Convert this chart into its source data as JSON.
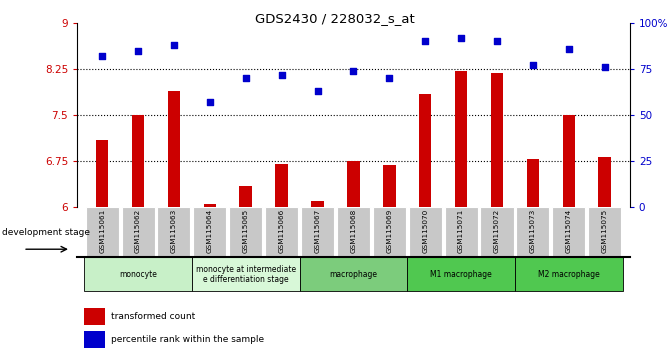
{
  "title": "GDS2430 / 228032_s_at",
  "samples": [
    "GSM115061",
    "GSM115062",
    "GSM115063",
    "GSM115064",
    "GSM115065",
    "GSM115066",
    "GSM115067",
    "GSM115068",
    "GSM115069",
    "GSM115070",
    "GSM115071",
    "GSM115072",
    "GSM115073",
    "GSM115074",
    "GSM115075"
  ],
  "red_values": [
    7.1,
    7.5,
    7.9,
    6.05,
    6.35,
    6.7,
    6.1,
    6.75,
    6.68,
    7.85,
    8.22,
    8.18,
    6.78,
    7.5,
    6.82
  ],
  "blue_values": [
    82,
    85,
    88,
    57,
    70,
    72,
    63,
    74,
    70,
    90,
    92,
    90,
    77,
    86,
    76
  ],
  "left_ylim": [
    6,
    9
  ],
  "right_ylim": [
    0,
    100
  ],
  "left_yticks": [
    6,
    6.75,
    7.5,
    8.25,
    9
  ],
  "right_yticks": [
    0,
    25,
    50,
    75,
    100
  ],
  "right_yticklabels": [
    "0",
    "25",
    "50",
    "75",
    "100%"
  ],
  "hlines": [
    6.75,
    7.5,
    8.25
  ],
  "groups": [
    {
      "label": "monocyte",
      "start": 0,
      "end": 3,
      "color": "#c8f0c8"
    },
    {
      "label": "monocyte at intermediate\ne differentiation stage",
      "start": 3,
      "end": 6,
      "color": "#d8f8d8"
    },
    {
      "label": "macrophage",
      "start": 6,
      "end": 9,
      "color": "#7ccc7c"
    },
    {
      "label": "M1 macrophage",
      "start": 9,
      "end": 12,
      "color": "#50c850"
    },
    {
      "label": "M2 macrophage",
      "start": 12,
      "end": 15,
      "color": "#50c850"
    }
  ],
  "bar_color": "#cc0000",
  "dot_color": "#0000cc",
  "tick_label_color_left": "#cc0000",
  "tick_label_color_right": "#0000cc",
  "dev_stage_label": "development stage",
  "legend_red": "transformed count",
  "legend_blue": "percentile rank within the sample",
  "sample_box_color": "#c8c8c8"
}
